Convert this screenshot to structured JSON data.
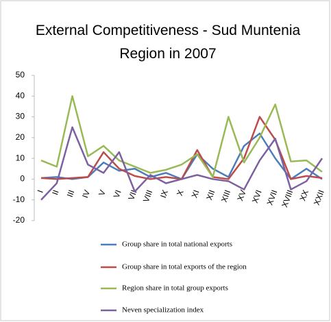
{
  "chart_data": {
    "type": "line",
    "title": "External Competitiveness - Sud Muntenia Region in 2007",
    "categories": [
      "I",
      "II",
      "III",
      "IV",
      "V",
      "VI",
      "VII",
      "VIII",
      "IX",
      "X",
      "XI",
      "XII",
      "XIII",
      "XV",
      "XVI",
      "XVII",
      "XVIII",
      "XX",
      "XXII"
    ],
    "series": [
      {
        "name": "Group share in total national exports",
        "color": "#4a7ebb",
        "values": [
          0.5,
          1,
          0,
          1,
          8,
          4,
          5,
          1,
          3,
          0,
          12,
          5,
          1,
          16,
          22,
          10,
          0,
          5,
          0
        ]
      },
      {
        "name": "Group share in total exports of the region",
        "color": "#be4b48",
        "values": [
          0.5,
          0,
          0.5,
          1,
          13,
          5,
          1.5,
          0,
          1,
          0,
          14,
          1,
          0,
          10,
          30,
          19,
          0,
          1.5,
          0.5
        ]
      },
      {
        "name": "Region share in total group exports",
        "color": "#98b954",
        "values": [
          9,
          6,
          40,
          11,
          16,
          9,
          6,
          3,
          4.5,
          7,
          12,
          1,
          30,
          8,
          20,
          36,
          8.5,
          9,
          3.5
        ]
      },
      {
        "name": "Neven specialization index",
        "color": "#7d60a0",
        "values": [
          -10,
          -2,
          25,
          7,
          3,
          13,
          -6,
          2,
          -2,
          0,
          2,
          0,
          -1,
          -5,
          9,
          19.5,
          -5,
          -1,
          10
        ]
      }
    ],
    "ylim": [
      -20,
      50
    ],
    "yticks": [
      -20,
      -10,
      0,
      10,
      20,
      30,
      40,
      50
    ],
    "grid": false
  }
}
